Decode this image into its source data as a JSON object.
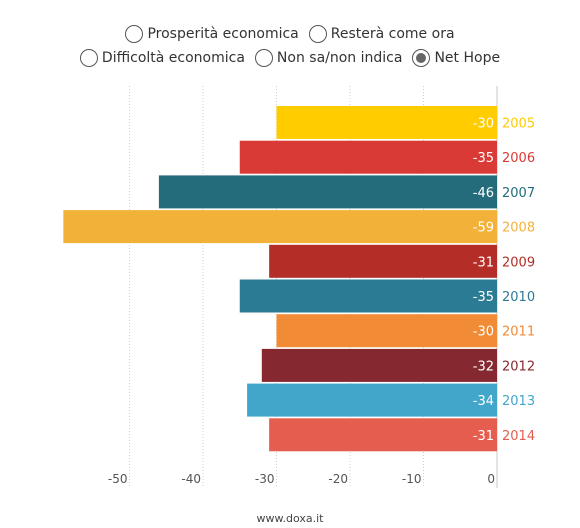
{
  "legend": {
    "row1": [
      {
        "label": "Prosperità economica",
        "selected": false
      },
      {
        "label": "Resterà come ora",
        "selected": false
      }
    ],
    "row2": [
      {
        "label": "Difficoltà economica",
        "selected": false
      },
      {
        "label": "Non sa/non indica",
        "selected": false
      },
      {
        "label": "Net Hope",
        "selected": true
      }
    ]
  },
  "footer": "www.doxa.it",
  "chart_data": {
    "type": "bar",
    "orientation": "horizontal",
    "categories": [
      "2005",
      "2006",
      "2007",
      "2008",
      "2009",
      "2010",
      "2011",
      "2012",
      "2013",
      "2014"
    ],
    "values": [
      -30,
      -35,
      -46,
      -59,
      -31,
      -35,
      -30,
      -32,
      -34,
      -31
    ],
    "colors": [
      "#FFCC00",
      "#D93A35",
      "#246C7B",
      "#F2B23A",
      "#B42D26",
      "#2C7B94",
      "#F28B35",
      "#85282F",
      "#42A6CA",
      "#E45D4E"
    ],
    "xlim": [
      -60,
      0
    ],
    "xticks": [
      -50,
      -40,
      -30,
      -20,
      -10,
      0
    ],
    "grid": true,
    "title": "",
    "xlabel": "",
    "ylabel": ""
  }
}
